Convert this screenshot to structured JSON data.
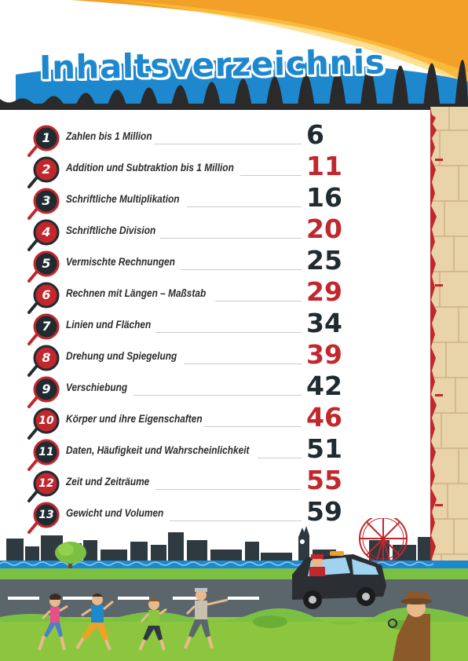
{
  "title": "Inhaltsverzeichnis",
  "colors": {
    "title_blue": "#1e88cf",
    "accent_red": "#c1272d",
    "dark": "#1f2b31",
    "orange": "#f2a027"
  },
  "chapters": [
    {
      "number": "1",
      "title": "Zahlen bis 1 Million",
      "page": "6"
    },
    {
      "number": "2",
      "title": "Addition und Subtraktion bis 1 Million",
      "page": "11"
    },
    {
      "number": "3",
      "title": "Schriftliche Multiplikation",
      "page": "16"
    },
    {
      "number": "4",
      "title": "Schriftliche Division",
      "page": "20"
    },
    {
      "number": "5",
      "title": "Vermischte Rechnungen",
      "page": "25"
    },
    {
      "number": "6",
      "title": "Rechnen mit Längen – Maßstab",
      "page": "29"
    },
    {
      "number": "7",
      "title": "Linien und Flächen",
      "page": "34"
    },
    {
      "number": "8",
      "title": "Drehung und Spiegelung",
      "page": "39"
    },
    {
      "number": "9",
      "title": "Verschiebung",
      "page": "42"
    },
    {
      "number": "10",
      "title": "Körper und ihre Eigenschaften",
      "page": "46"
    },
    {
      "number": "11",
      "title": "Daten, Häufigkeit und Wahrscheinlichkeit",
      "page": "51"
    },
    {
      "number": "12",
      "title": "Zeit und Zeiträume",
      "page": "55"
    },
    {
      "number": "13",
      "title": "Gewicht und Volumen",
      "page": "59"
    }
  ],
  "illustration": {
    "scene": "city-skyline-chase",
    "icons": [
      "magnifier-icon",
      "ferris-wheel-icon",
      "big-ben-icon",
      "taxi-icon",
      "tree-icon",
      "detective-icon",
      "runner-icon"
    ]
  }
}
